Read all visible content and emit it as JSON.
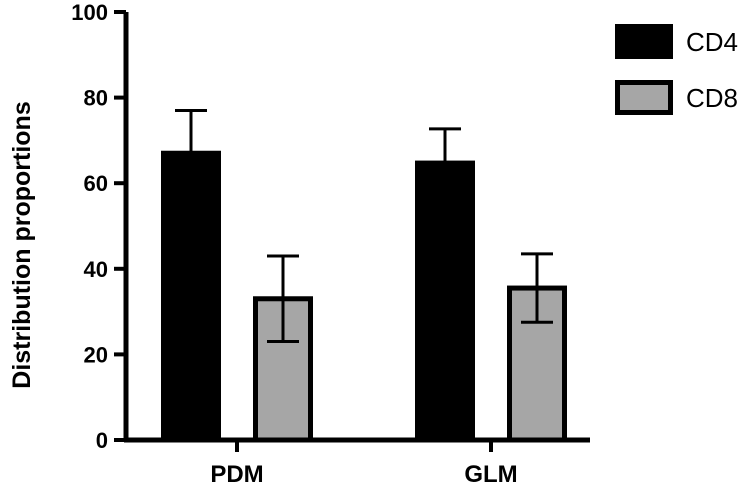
{
  "chart_data": {
    "type": "bar",
    "categories": [
      "PDM",
      "GLM"
    ],
    "series": [
      {
        "name": "CD4",
        "values": [
          67,
          64.7
        ],
        "error": [
          10,
          8
        ],
        "color": "#000000",
        "stroke": "#000000"
      },
      {
        "name": "CD8",
        "values": [
          33,
          35.5
        ],
        "error": [
          10,
          8
        ],
        "color": "#a6a6a6",
        "stroke": "#000000"
      }
    ],
    "title": "",
    "xlabel": "",
    "ylabel": "Distribution proportions",
    "ylim": [
      0,
      100
    ],
    "yticks": [
      0,
      20,
      40,
      60,
      80,
      100
    ],
    "grid": false,
    "legend_position": "top-right"
  }
}
